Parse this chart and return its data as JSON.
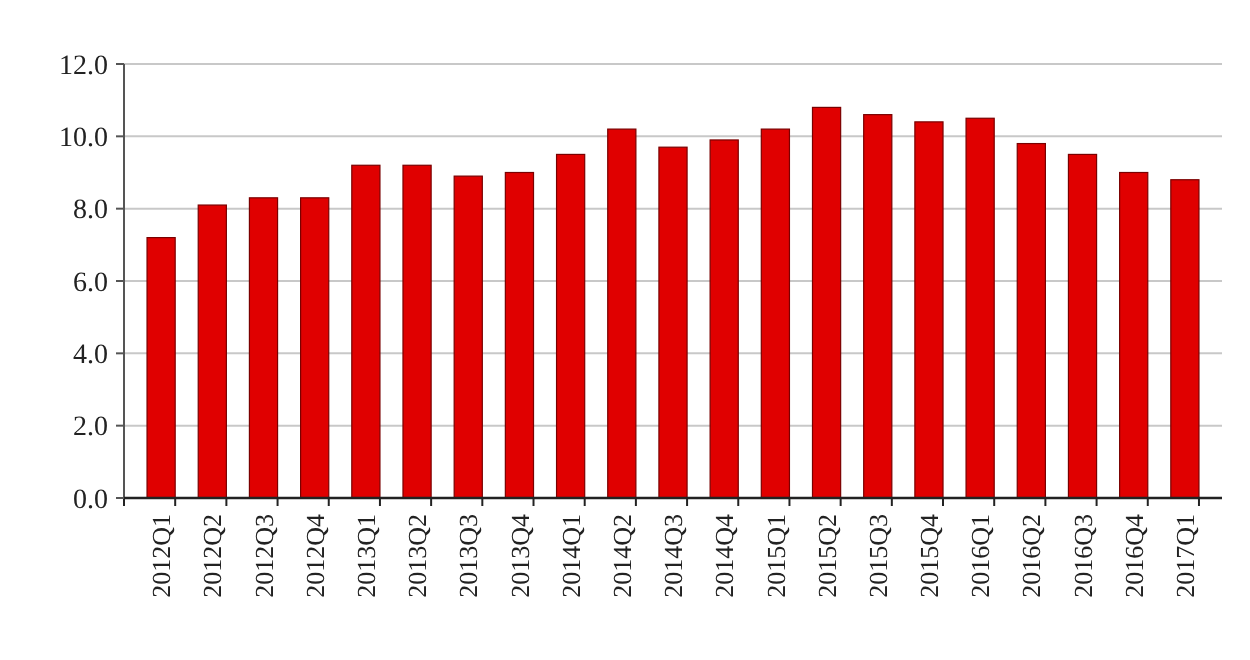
{
  "chart_data": {
    "type": "bar",
    "categories": [
      "2012Q1",
      "2012Q2",
      "2012Q3",
      "2012Q4",
      "2013Q1",
      "2013Q2",
      "2013Q3",
      "2013Q4",
      "2014Q1",
      "2014Q2",
      "2014Q3",
      "2014Q4",
      "2015Q1",
      "2015Q2",
      "2015Q3",
      "2015Q4",
      "2016Q1",
      "2016Q2",
      "2016Q3",
      "2016Q4",
      "2017Q1"
    ],
    "values": [
      7.2,
      8.1,
      8.3,
      8.3,
      9.2,
      9.2,
      8.9,
      9.0,
      9.5,
      10.2,
      9.7,
      9.9,
      10.2,
      10.8,
      10.6,
      10.4,
      10.5,
      9.8,
      9.5,
      9.0,
      8.8
    ],
    "color": "#e00000",
    "ylim": [
      0,
      12
    ],
    "yticks": [
      {
        "value": 0,
        "label": "0.0"
      },
      {
        "value": 2,
        "label": "2.0"
      },
      {
        "value": 4,
        "label": "4.0"
      },
      {
        "value": 6,
        "label": "6.0"
      },
      {
        "value": 8,
        "label": "8.0"
      },
      {
        "value": 10,
        "label": "10.0"
      },
      {
        "value": 12,
        "label": "12.0"
      }
    ],
    "grid": "y"
  }
}
